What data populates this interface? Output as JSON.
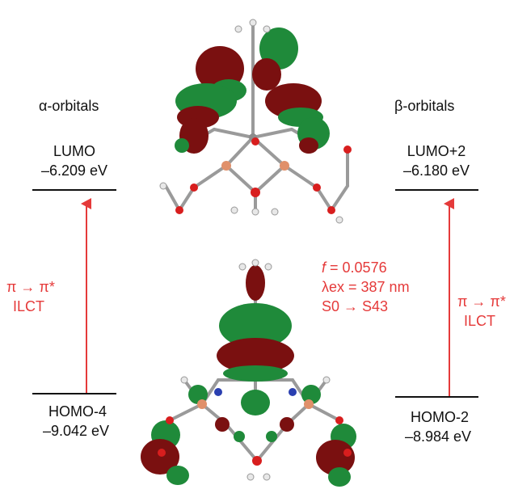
{
  "headers": {
    "alpha": "α-orbitals",
    "beta": "β-orbitals"
  },
  "alpha": {
    "upper": {
      "name": "LUMO",
      "energy": "–6.209 eV"
    },
    "lower": {
      "name": "HOMO-4",
      "energy": "–9.042 eV"
    },
    "transition": {
      "type": "π → π*",
      "label": "ILCT"
    }
  },
  "beta": {
    "upper": {
      "name": "LUMO+2",
      "energy": "–6.180 eV"
    },
    "lower": {
      "name": "HOMO-2",
      "energy": "–8.984 eV"
    },
    "transition": {
      "type": "π → π*",
      "label": "ILCT"
    }
  },
  "excitation": {
    "f_symbol": "f",
    "f_value": " = 0.0576",
    "lambda": "λex = 387 nm",
    "states": "S0 → S43"
  },
  "colors": {
    "arrow": "#e53a3a",
    "level_line": "#111111",
    "lobe_red": "#7a1010",
    "lobe_green": "#1f8a3a",
    "atom_carbon": "#8c8c8c",
    "atom_oxygen": "#d81e1e",
    "atom_copper": "#e0906a",
    "atom_nitrogen": "#2a3fb0",
    "atom_hydrogen": "#e8e8e8"
  }
}
